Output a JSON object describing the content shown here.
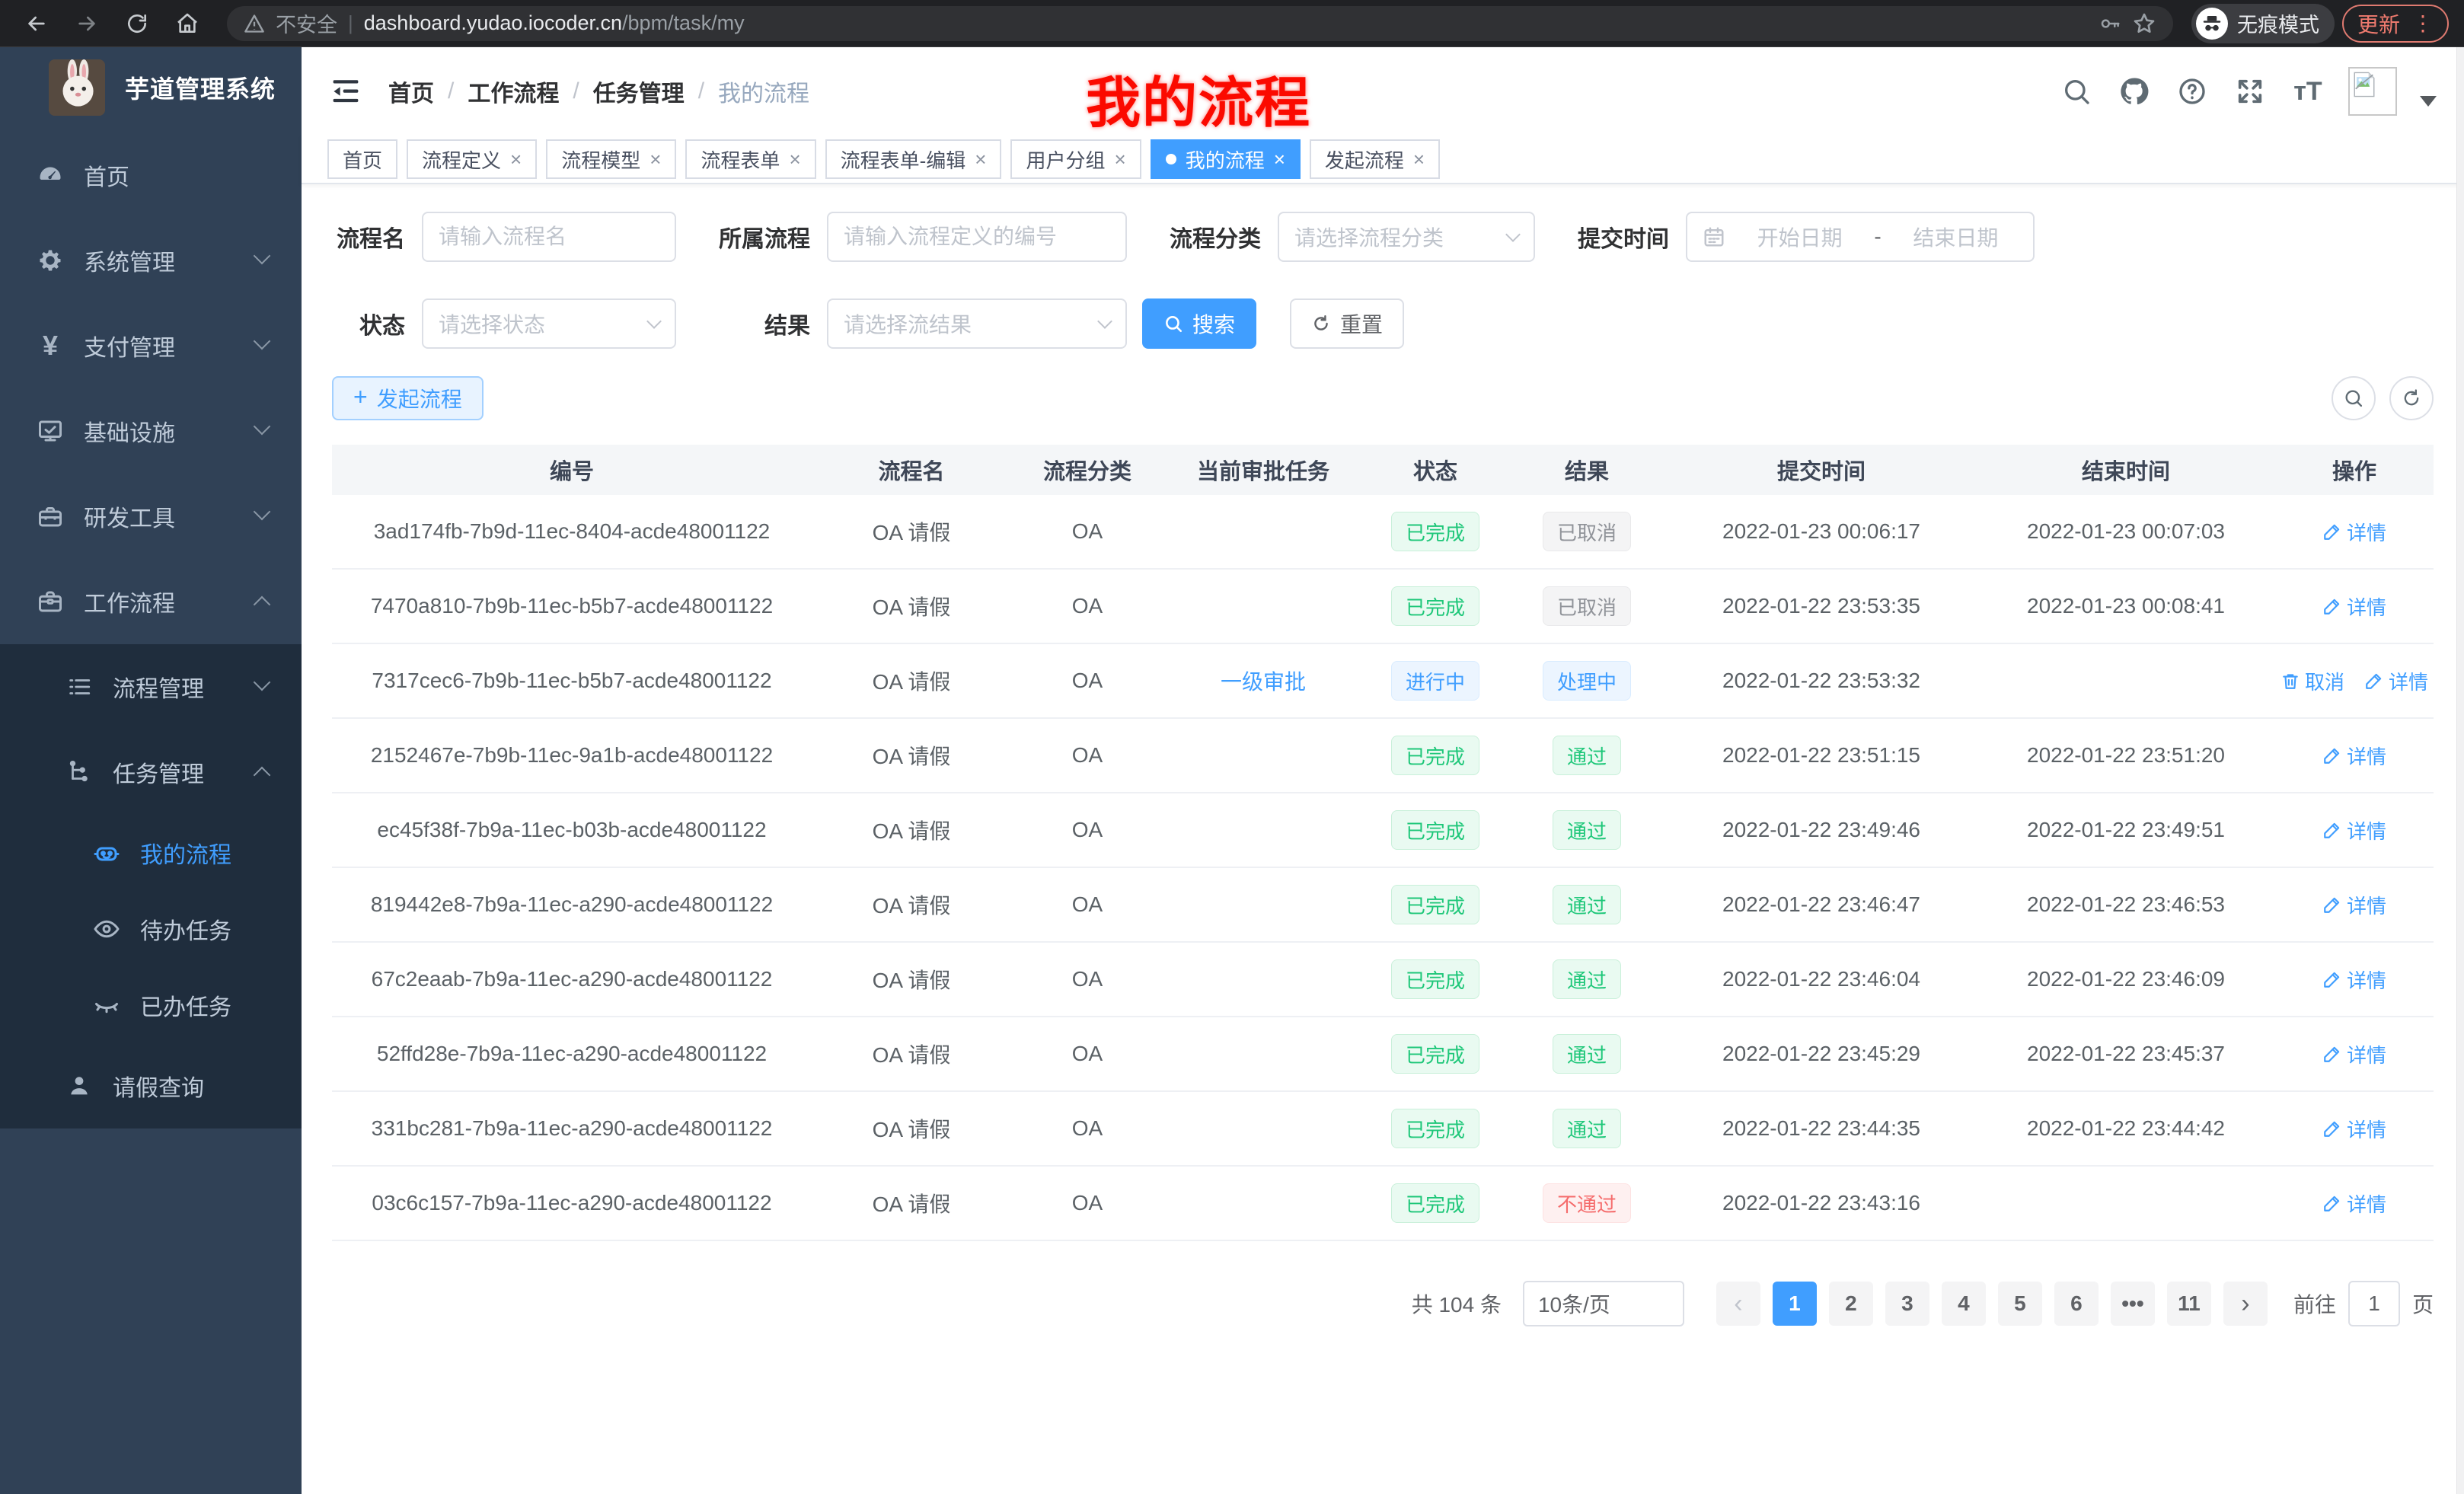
{
  "browser": {
    "security_label": "不安全",
    "url_host": "dashboard.yudao.iocoder.cn",
    "url_path": "/bpm/task/my",
    "incognito_label": "无痕模式",
    "update_label": "更新"
  },
  "sidebar": {
    "app_title": "芋道管理系统",
    "items": [
      {
        "label": "首页",
        "icon": "dashboard-icon"
      },
      {
        "label": "系统管理",
        "icon": "gear-icon",
        "chevron": "down"
      },
      {
        "label": "支付管理",
        "icon": "yen-icon",
        "chevron": "down"
      },
      {
        "label": "基础设施",
        "icon": "monitor-icon",
        "chevron": "down"
      },
      {
        "label": "研发工具",
        "icon": "toolbox-icon",
        "chevron": "down"
      },
      {
        "label": "工作流程",
        "icon": "briefcase-icon",
        "chevron": "up"
      },
      {
        "label": "流程管理",
        "icon": "list-icon",
        "chevron": "down"
      },
      {
        "label": "任务管理",
        "icon": "flow-icon",
        "chevron": "up"
      },
      {
        "label": "我的流程",
        "icon": "robot-icon",
        "active": true
      },
      {
        "label": "待办任务",
        "icon": "eye-icon"
      },
      {
        "label": "已办任务",
        "icon": "eye-closed-icon"
      },
      {
        "label": "请假查询",
        "icon": "user-icon"
      }
    ]
  },
  "navbar": {
    "breadcrumb": [
      "首页",
      "工作流程",
      "任务管理",
      "我的流程"
    ],
    "annotation": "我的流程"
  },
  "tabs": [
    {
      "label": "首页",
      "closable": false,
      "active": false
    },
    {
      "label": "流程定义",
      "closable": true,
      "active": false
    },
    {
      "label": "流程模型",
      "closable": true,
      "active": false
    },
    {
      "label": "流程表单",
      "closable": true,
      "active": false
    },
    {
      "label": "流程表单-编辑",
      "closable": true,
      "active": false
    },
    {
      "label": "用户分组",
      "closable": true,
      "active": false
    },
    {
      "label": "我的流程",
      "closable": true,
      "active": true
    },
    {
      "label": "发起流程",
      "closable": true,
      "active": false
    }
  ],
  "filters": {
    "name_label": "流程名",
    "name_placeholder": "请输入流程名",
    "def_label": "所属流程",
    "def_placeholder": "请输入流程定义的编号",
    "category_label": "流程分类",
    "category_placeholder": "请选择流程分类",
    "time_label": "提交时间",
    "start_placeholder": "开始日期",
    "range_separator": "-",
    "end_placeholder": "结束日期",
    "status_label": "状态",
    "status_placeholder": "请选择状态",
    "result_label": "结果",
    "result_placeholder": "请选择流结果",
    "search_label": "搜索",
    "reset_label": "重置"
  },
  "toolbar": {
    "create_label": "发起流程"
  },
  "table": {
    "columns": [
      "编号",
      "流程名",
      "流程分类",
      "当前审批任务",
      "状态",
      "结果",
      "提交时间",
      "结束时间",
      "操作"
    ],
    "rows": [
      {
        "id": "3ad174fb-7b9d-11ec-8404-acde48001122",
        "name": "OA 请假",
        "category": "OA",
        "task": "",
        "status": {
          "text": "已完成",
          "type": "success"
        },
        "result": {
          "text": "已取消",
          "type": "info"
        },
        "submit_time": "2022-01-23 00:06:17",
        "end_time": "2022-01-23 00:07:03",
        "actions": [
          {
            "label": "详情",
            "icon": "edit-icon"
          }
        ]
      },
      {
        "id": "7470a810-7b9b-11ec-b5b7-acde48001122",
        "name": "OA 请假",
        "category": "OA",
        "task": "",
        "status": {
          "text": "已完成",
          "type": "success"
        },
        "result": {
          "text": "已取消",
          "type": "info"
        },
        "submit_time": "2022-01-22 23:53:35",
        "end_time": "2022-01-23 00:08:41",
        "actions": [
          {
            "label": "详情",
            "icon": "edit-icon"
          }
        ]
      },
      {
        "id": "7317cec6-7b9b-11ec-b5b7-acde48001122",
        "name": "OA 请假",
        "category": "OA",
        "task": "一级审批",
        "status": {
          "text": "进行中",
          "type": "primary"
        },
        "result": {
          "text": "处理中",
          "type": "primary"
        },
        "submit_time": "2022-01-22 23:53:32",
        "end_time": "",
        "actions": [
          {
            "label": "取消",
            "icon": "trash-icon"
          },
          {
            "label": "详情",
            "icon": "edit-icon"
          }
        ]
      },
      {
        "id": "2152467e-7b9b-11ec-9a1b-acde48001122",
        "name": "OA 请假",
        "category": "OA",
        "task": "",
        "status": {
          "text": "已完成",
          "type": "success"
        },
        "result": {
          "text": "通过",
          "type": "success"
        },
        "submit_time": "2022-01-22 23:51:15",
        "end_time": "2022-01-22 23:51:20",
        "actions": [
          {
            "label": "详情",
            "icon": "edit-icon"
          }
        ]
      },
      {
        "id": "ec45f38f-7b9a-11ec-b03b-acde48001122",
        "name": "OA 请假",
        "category": "OA",
        "task": "",
        "status": {
          "text": "已完成",
          "type": "success"
        },
        "result": {
          "text": "通过",
          "type": "success"
        },
        "submit_time": "2022-01-22 23:49:46",
        "end_time": "2022-01-22 23:49:51",
        "actions": [
          {
            "label": "详情",
            "icon": "edit-icon"
          }
        ]
      },
      {
        "id": "819442e8-7b9a-11ec-a290-acde48001122",
        "name": "OA 请假",
        "category": "OA",
        "task": "",
        "status": {
          "text": "已完成",
          "type": "success"
        },
        "result": {
          "text": "通过",
          "type": "success"
        },
        "submit_time": "2022-01-22 23:46:47",
        "end_time": "2022-01-22 23:46:53",
        "actions": [
          {
            "label": "详情",
            "icon": "edit-icon"
          }
        ]
      },
      {
        "id": "67c2eaab-7b9a-11ec-a290-acde48001122",
        "name": "OA 请假",
        "category": "OA",
        "task": "",
        "status": {
          "text": "已完成",
          "type": "success"
        },
        "result": {
          "text": "通过",
          "type": "success"
        },
        "submit_time": "2022-01-22 23:46:04",
        "end_time": "2022-01-22 23:46:09",
        "actions": [
          {
            "label": "详情",
            "icon": "edit-icon"
          }
        ]
      },
      {
        "id": "52ffd28e-7b9a-11ec-a290-acde48001122",
        "name": "OA 请假",
        "category": "OA",
        "task": "",
        "status": {
          "text": "已完成",
          "type": "success"
        },
        "result": {
          "text": "通过",
          "type": "success"
        },
        "submit_time": "2022-01-22 23:45:29",
        "end_time": "2022-01-22 23:45:37",
        "actions": [
          {
            "label": "详情",
            "icon": "edit-icon"
          }
        ]
      },
      {
        "id": "331bc281-7b9a-11ec-a290-acde48001122",
        "name": "OA 请假",
        "category": "OA",
        "task": "",
        "status": {
          "text": "已完成",
          "type": "success"
        },
        "result": {
          "text": "通过",
          "type": "success"
        },
        "submit_time": "2022-01-22 23:44:35",
        "end_time": "2022-01-22 23:44:42",
        "actions": [
          {
            "label": "详情",
            "icon": "edit-icon"
          }
        ]
      },
      {
        "id": "03c6c157-7b9a-11ec-a290-acde48001122",
        "name": "OA 请假",
        "category": "OA",
        "task": "",
        "status": {
          "text": "已完成",
          "type": "success"
        },
        "result": {
          "text": "不通过",
          "type": "danger"
        },
        "submit_time": "2022-01-22 23:43:16",
        "end_time": "",
        "actions": [
          {
            "label": "详情",
            "icon": "edit-icon"
          }
        ]
      }
    ]
  },
  "pagination": {
    "total_label": "共 104 条",
    "page_size": "10条/页",
    "pages": [
      "1",
      "2",
      "3",
      "4",
      "5",
      "6",
      "•••",
      "11"
    ],
    "active_page": "1",
    "prev_label": "‹",
    "next_label": "›",
    "goto_label": "前往",
    "goto_value": "1",
    "page_unit_label": "页"
  },
  "colors": {
    "accent": "#409eff",
    "sidebar_bg": "#304156",
    "submenu_bg": "#1f2d3d",
    "success": "#1ec779",
    "info": "#909399",
    "danger": "#f56c6c",
    "annotation_red": "#fb0a00"
  }
}
